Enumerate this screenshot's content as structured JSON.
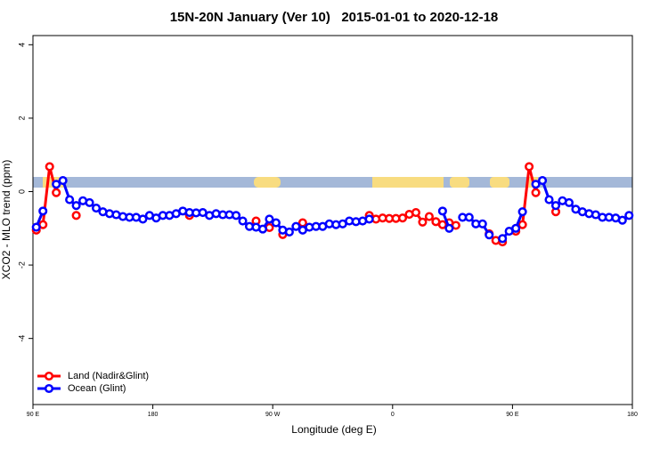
{
  "chart_data": {
    "type": "line",
    "title": "15N-20N January (Ver 10)   2015-01-01 to 2020-12-18",
    "x_label": "Longitude (deg E)",
    "y_label": "XCO2 - MLO trend (ppm)",
    "x": [
      92.5,
      97.5,
      102.5,
      107.5,
      112.5,
      117.5,
      122.5,
      127.5,
      132.5,
      137.5,
      142.5,
      147.5,
      152.5,
      157.5,
      162.5,
      167.5,
      172.5,
      177.5,
      182.5,
      187.5,
      192.5,
      197.5,
      202.5,
      207.5,
      212.5,
      217.5,
      222.5,
      227.5,
      232.5,
      237.5,
      242.5,
      247.5,
      252.5,
      257.5,
      262.5,
      267.5,
      272.5,
      277.5,
      282.5,
      287.5,
      292.5,
      297.5,
      302.5,
      307.5,
      312.5,
      317.5,
      322.5,
      327.5,
      332.5,
      337.5,
      342.5,
      347.5,
      352.5,
      357.5,
      362.5,
      367.5,
      372.5,
      377.5,
      382.5,
      387.5,
      392.5,
      397.5,
      402.5,
      407.5,
      412.5,
      417.5,
      422.5,
      427.5,
      432.5,
      437.5,
      442.5,
      447.5,
      452.5,
      457.5,
      462.5,
      467.5,
      472.5,
      477.5,
      482.5,
      487.5,
      492.5,
      497.5,
      502.5,
      507.5,
      512.5,
      517.5,
      522.5,
      527.5,
      532.5,
      537.5
    ],
    "series": [
      {
        "name": "Land (Nadir&Glint)",
        "color": "#ff0000",
        "values": [
          -1.05,
          -0.9,
          0.68,
          -0.03,
          null,
          null,
          -0.65,
          null,
          null,
          null,
          null,
          null,
          null,
          null,
          null,
          null,
          null,
          null,
          null,
          null,
          null,
          null,
          null,
          -0.65,
          null,
          null,
          null,
          null,
          null,
          null,
          null,
          null,
          null,
          -0.8,
          null,
          -0.98,
          null,
          -1.17,
          null,
          null,
          -0.85,
          null,
          null,
          null,
          null,
          null,
          null,
          null,
          null,
          null,
          -0.65,
          -0.75,
          -0.72,
          -0.73,
          -0.73,
          -0.72,
          -0.62,
          -0.57,
          -0.83,
          -0.68,
          -0.82,
          -0.9,
          -0.85,
          -0.92,
          null,
          null,
          null,
          null,
          -1.15,
          -1.33,
          -1.37,
          null,
          -1.08,
          -0.9,
          0.68,
          -0.03,
          null,
          null,
          -0.55,
          null,
          null,
          null,
          null,
          null,
          null,
          null,
          null,
          null,
          null,
          null
        ]
      },
      {
        "name": "Ocean (Glint)",
        "color": "#0000ff",
        "values": [
          -0.97,
          -0.53,
          null,
          0.2,
          0.3,
          -0.22,
          -0.38,
          -0.25,
          -0.3,
          -0.45,
          -0.55,
          -0.6,
          -0.63,
          -0.68,
          -0.7,
          -0.7,
          -0.75,
          -0.65,
          -0.72,
          -0.65,
          -0.65,
          -0.6,
          -0.53,
          -0.57,
          -0.58,
          -0.57,
          -0.65,
          -0.6,
          -0.63,
          -0.63,
          -0.65,
          -0.8,
          -0.95,
          -0.97,
          -1.02,
          -0.75,
          -0.85,
          -1.05,
          -1.1,
          -0.95,
          -1.05,
          -0.97,
          -0.95,
          -0.95,
          -0.88,
          -0.9,
          -0.88,
          -0.8,
          -0.82,
          -0.8,
          -0.75,
          null,
          null,
          null,
          null,
          null,
          null,
          null,
          null,
          null,
          null,
          -0.53,
          -1.0,
          null,
          -0.7,
          -0.7,
          -0.88,
          -0.88,
          -1.18,
          null,
          -1.28,
          -1.08,
          -1.0,
          -0.55,
          null,
          0.2,
          0.3,
          -0.22,
          -0.38,
          -0.25,
          -0.3,
          -0.48,
          -0.55,
          -0.6,
          -0.63,
          -0.7,
          -0.7,
          -0.72,
          -0.78,
          -0.65
        ]
      }
    ],
    "xlim": [
      90,
      540
    ],
    "xticks": [
      {
        "value": 90,
        "label": "90 E"
      },
      {
        "value": 180,
        "label": "180"
      },
      {
        "value": 270,
        "label": "90 W"
      },
      {
        "value": 360,
        "label": "0"
      },
      {
        "value": 450,
        "label": "90 E"
      },
      {
        "value": 540,
        "label": "180"
      }
    ],
    "ylim": [
      -5.8,
      4.25
    ],
    "yticks": [
      -4,
      -2,
      0,
      2,
      4
    ],
    "legend": "bottom-left"
  }
}
